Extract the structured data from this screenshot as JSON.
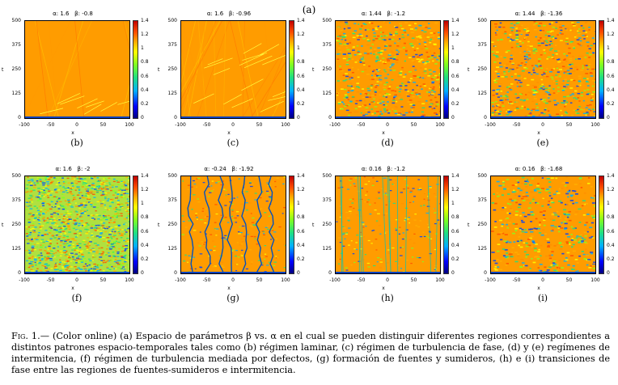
{
  "top_label": "(a)",
  "axes": {
    "x_ticks": [
      "-100",
      "-50",
      "0",
      "50",
      "100"
    ],
    "y_ticks": [
      "500",
      "375",
      "250",
      "125",
      "0"
    ],
    "xlabel": "x",
    "ylabel": "t",
    "colorbar_ticks": [
      "1.4",
      "1.2",
      "1",
      "0.8",
      "0.6",
      "0.4",
      "0.2",
      "0"
    ]
  },
  "panels": [
    {
      "id": "b",
      "title": "α: 1.6   β: -0.8",
      "label": "(b)",
      "pattern": "laminar"
    },
    {
      "id": "c",
      "title": "α: 1.6   β: -0.96",
      "label": "(c)",
      "pattern": "phase-turbulence"
    },
    {
      "id": "d",
      "title": "α: 1.44   β: -1.2",
      "label": "(d)",
      "pattern": "intermittency"
    },
    {
      "id": "e",
      "title": "α: 1.44   β: -1.36",
      "label": "(e)",
      "pattern": "intermittency"
    },
    {
      "id": "f",
      "title": "α: 1.6   β: -2",
      "label": "(f)",
      "pattern": "defect-turbulence"
    },
    {
      "id": "g",
      "title": "α: -0.24   β: -1.92",
      "label": "(g)",
      "pattern": "sources-sinks"
    },
    {
      "id": "h",
      "title": "α: 0.16   β: -1.2",
      "label": "(h)",
      "pattern": "transition"
    },
    {
      "id": "i",
      "title": "α: 0.16   β: -1.68",
      "label": "(i)",
      "pattern": "transition-intermittent"
    }
  ],
  "caption": {
    "lead": "Fig. 1.—",
    "text": " (Color online) (a) Espacio de parámetros β vs. α en el cual se pueden distinguir diferentes regiones correspondientes a distintos patrones espacio-temporales tales como (b) régimen laminar, (c) régimen de turbulencia de fase, (d) y (e) regímenes de intermitencia, (f) régimen de turbulencia mediada por defectos, (g) formación de fuentes y sumideros, (h) e (i) transiciones de fase entre las regiones de fuentes-sumideros e intermitencia."
  }
}
